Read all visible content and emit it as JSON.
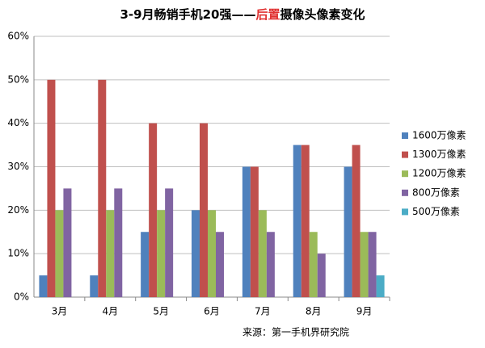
{
  "chart_data": {
    "type": "bar",
    "title_parts": [
      {
        "text": "3-9月畅销手机20强——",
        "color": "#000000"
      },
      {
        "text": "后置",
        "color": "#e03030"
      },
      {
        "text": "摄像头像素变化",
        "color": "#000000"
      }
    ],
    "categories": [
      "3月",
      "4月",
      "5月",
      "6月",
      "7月",
      "8月",
      "9月"
    ],
    "series": [
      {
        "name": "1600万像素",
        "color": "#4f81bd",
        "values": [
          5,
          5,
          15,
          20,
          30,
          35,
          30
        ]
      },
      {
        "name": "1300万像素",
        "color": "#c0504d",
        "values": [
          50,
          50,
          40,
          40,
          30,
          35,
          35
        ]
      },
      {
        "name": "1200万像素",
        "color": "#9bbb59",
        "values": [
          20,
          20,
          20,
          20,
          20,
          15,
          15
        ]
      },
      {
        "name": "800万像素",
        "color": "#8064a2",
        "values": [
          25,
          25,
          25,
          15,
          15,
          10,
          15
        ]
      },
      {
        "name": "500万像素",
        "color": "#4bacc6",
        "values": [
          0,
          0,
          0,
          0,
          0,
          0,
          5
        ]
      }
    ],
    "ylim": [
      0,
      60
    ],
    "yticks": [
      {
        "value": 0,
        "label": "0%"
      },
      {
        "value": 10,
        "label": "10%"
      },
      {
        "value": 20,
        "label": "20%"
      },
      {
        "value": 30,
        "label": "30%"
      },
      {
        "value": 40,
        "label": "40%"
      },
      {
        "value": 50,
        "label": "50%"
      },
      {
        "value": 60,
        "label": "60%"
      }
    ],
    "grid": true,
    "legend": "right",
    "source": "来源：第一手机界研究院"
  }
}
